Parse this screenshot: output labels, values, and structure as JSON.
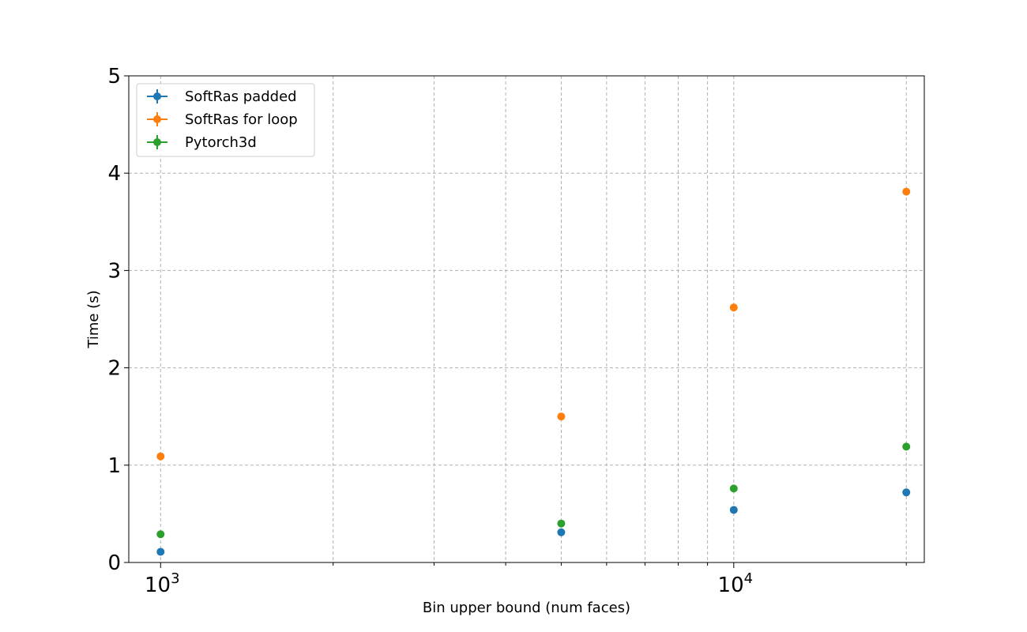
{
  "chart_data": {
    "type": "scatter",
    "title": "",
    "xlabel": "Bin upper bound (num faces)",
    "ylabel": "Time (s)",
    "xscale": "log",
    "xlim": [
      880,
      21500
    ],
    "ylim": [
      0,
      5
    ],
    "grid": true,
    "legend_position": "top-left",
    "y_ticks": [
      "0",
      "1",
      "2",
      "3",
      "4",
      "5"
    ],
    "x_major_ticks": [
      {
        "value": 1000,
        "base": "10",
        "exp": "3"
      },
      {
        "value": 10000,
        "base": "10",
        "exp": "4"
      }
    ],
    "x_minor_ticks": [
      2000,
      3000,
      4000,
      5000,
      6000,
      7000,
      8000,
      9000,
      20000
    ],
    "x": [
      1000,
      5000,
      10000,
      20000
    ],
    "series": [
      {
        "name": "SoftRas padded",
        "color": "#1f77b4",
        "values": [
          0.11,
          0.31,
          0.54,
          0.72
        ]
      },
      {
        "name": "SoftRas for loop",
        "color": "#ff7f0e",
        "values": [
          1.09,
          1.5,
          2.62,
          3.81
        ]
      },
      {
        "name": "Pytorch3d",
        "color": "#2ca02c",
        "values": [
          0.29,
          0.4,
          0.76,
          1.19
        ]
      }
    ]
  }
}
